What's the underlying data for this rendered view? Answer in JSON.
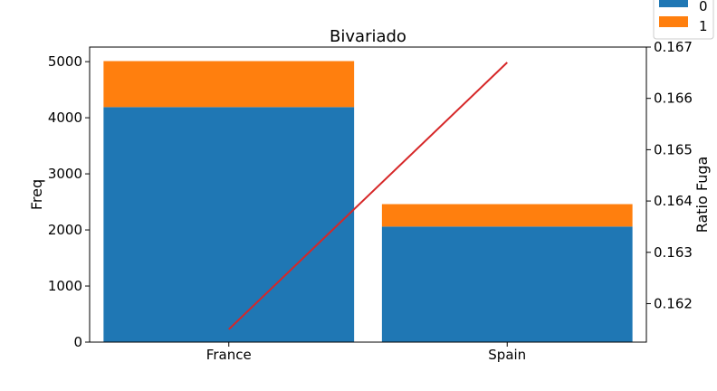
{
  "chart_data": {
    "type": "bar",
    "title": "Bivariado",
    "xlabel": "",
    "ylabel": "Freq",
    "y2label": "Ratio Fuga",
    "categories": [
      "France",
      "Spain"
    ],
    "stacked": true,
    "series": [
      {
        "name": "0",
        "values": [
          4190,
          2060
        ],
        "color": "#1f77b4"
      },
      {
        "name": "1",
        "values": [
          820,
          400
        ],
        "color": "#ff7f0e"
      }
    ],
    "line": {
      "axis": "right",
      "values": [
        0.1615,
        0.1667
      ],
      "color": "#d62728"
    },
    "ylim": [
      0,
      5260
    ],
    "y2lim": [
      0.16125,
      0.167
    ],
    "yticks": [
      0,
      1000,
      2000,
      3000,
      4000,
      5000
    ],
    "y2ticks": [
      0.162,
      0.163,
      0.164,
      0.165,
      0.166,
      0.167
    ],
    "legend_position": "top-right",
    "grid": false
  }
}
